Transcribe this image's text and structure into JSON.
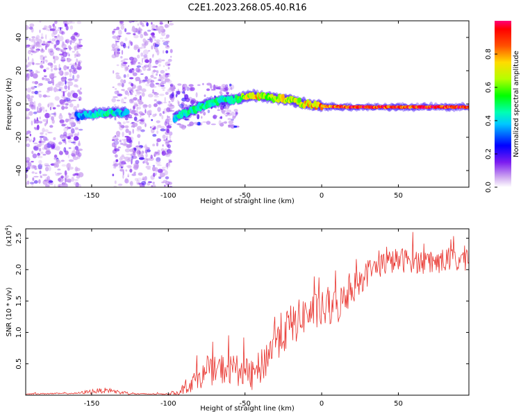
{
  "title": "C2E1.2023.268.05.40.R16",
  "chart_data": [
    {
      "type": "heatmap",
      "xlabel": "Height of straight line (km)",
      "ylabel": "Frequency (Hz)",
      "xlim": [
        -193,
        96
      ],
      "ylim": [
        -50,
        50
      ],
      "xticks": [
        -150,
        -100,
        -50,
        0,
        50
      ],
      "yticks": [
        -40,
        -20,
        0,
        20,
        40
      ],
      "colorbar": {
        "label": "Normalized spectral amplitude",
        "range": [
          0,
          1
        ],
        "ticks": [
          0.0,
          0.2,
          0.4,
          0.6,
          0.8
        ],
        "tick_labels": [
          "0.0",
          "0.2",
          "0.4",
          "0.6",
          "0.8"
        ]
      },
      "noise_regions": [
        {
          "x_from": -193,
          "x_to": -157,
          "f_from": -50,
          "f_to": 50,
          "amplitude": 0.15
        },
        {
          "x_from": -136,
          "x_to": -98,
          "f_from": -50,
          "f_to": 50,
          "amplitude": 0.15
        },
        {
          "x_from": -98,
          "x_to": -55,
          "f_from": -14,
          "f_to": 12,
          "amplitude": 0.2
        }
      ],
      "ridge": [
        {
          "x": -160,
          "f": -7,
          "amplitude": 0.35
        },
        {
          "x": -150,
          "f": -6,
          "amplitude": 0.45
        },
        {
          "x": -140,
          "f": -5,
          "amplitude": 0.5
        },
        {
          "x": -128,
          "f": -5,
          "amplitude": 0.4
        },
        {
          "x": -96,
          "f": -8,
          "amplitude": 0.45
        },
        {
          "x": -85,
          "f": -4,
          "amplitude": 0.5
        },
        {
          "x": -75,
          "f": 0,
          "amplitude": 0.5
        },
        {
          "x": -65,
          "f": 2,
          "amplitude": 0.5
        },
        {
          "x": -55,
          "f": 3,
          "amplitude": 0.55
        },
        {
          "x": -45,
          "f": 5,
          "amplitude": 0.85
        },
        {
          "x": -35,
          "f": 4,
          "amplitude": 0.7
        },
        {
          "x": -25,
          "f": 3,
          "amplitude": 0.8
        },
        {
          "x": -15,
          "f": 1,
          "amplitude": 0.75
        },
        {
          "x": -5,
          "f": -1,
          "amplitude": 0.85
        },
        {
          "x": 5,
          "f": -1.5,
          "amplitude": 0.95
        },
        {
          "x": 20,
          "f": -1.8,
          "amplitude": 1.0
        },
        {
          "x": 40,
          "f": -1.8,
          "amplitude": 1.0
        },
        {
          "x": 60,
          "f": -1.8,
          "amplitude": 1.0
        },
        {
          "x": 80,
          "f": -1.8,
          "amplitude": 1.0
        },
        {
          "x": 96,
          "f": -1.8,
          "amplitude": 1.0
        }
      ]
    },
    {
      "type": "line",
      "xlabel": "Height of straight line (km)",
      "ylabel": "SNR (10 * v/v)",
      "y_multiplier_label": "(x10",
      "y_multiplier_exp": "4",
      "y_multiplier_close": ")",
      "xlim": [
        -193,
        96
      ],
      "ylim": [
        0,
        2.65
      ],
      "xticks": [
        -150,
        -100,
        -50,
        0,
        50
      ],
      "yticks": [
        0.5,
        1.0,
        1.5,
        2.0,
        2.5
      ],
      "color": "#e8302a",
      "series": [
        {
          "name": "SNR",
          "x": [
            -193,
            -160,
            -150,
            -140,
            -130,
            -120,
            -100,
            -92,
            -85,
            -75,
            -65,
            -55,
            -45,
            -38,
            -30,
            -20,
            -10,
            0,
            10,
            20,
            30,
            40,
            50,
            60,
            70,
            80,
            90,
            96
          ],
          "values": [
            0.02,
            0.03,
            0.06,
            0.08,
            0.04,
            0.02,
            0.02,
            0.05,
            0.2,
            0.35,
            0.42,
            0.4,
            0.3,
            0.5,
            0.9,
            1.1,
            1.3,
            1.35,
            1.4,
            1.7,
            1.95,
            2.1,
            2.15,
            2.15,
            2.1,
            2.15,
            2.15,
            2.2
          ],
          "noise": [
            0.01,
            0.01,
            0.04,
            0.04,
            0.03,
            0.01,
            0.01,
            0.05,
            0.15,
            0.2,
            0.25,
            0.25,
            0.25,
            0.3,
            0.35,
            0.35,
            0.3,
            0.3,
            0.3,
            0.25,
            0.22,
            0.2,
            0.2,
            0.2,
            0.2,
            0.2,
            0.22,
            0.2
          ]
        }
      ]
    }
  ]
}
